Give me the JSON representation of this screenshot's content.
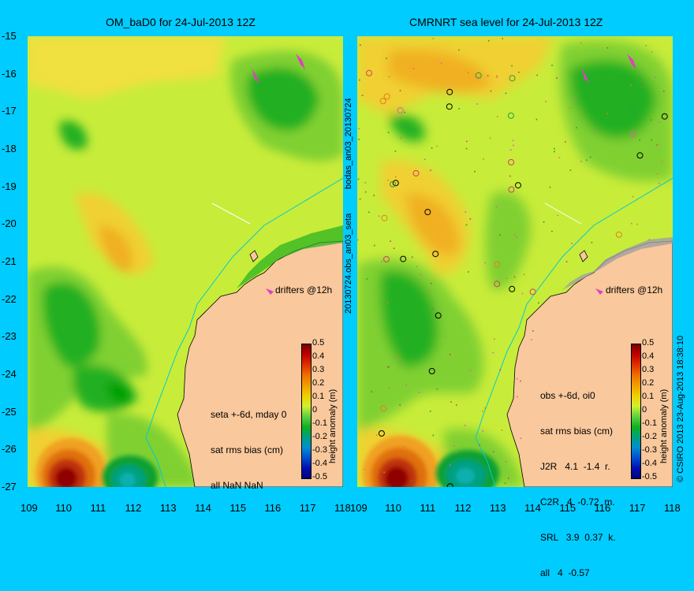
{
  "left": {
    "title": "OM_baD0 for 24-Jul-2013 12Z",
    "info": [
      "seta +-6d, mday 0",
      "sat rms bias (cm)",
      "all NaN NaN"
    ],
    "drifters": "drifters @12h",
    "colorbar_label": "height anomaly (m)"
  },
  "right": {
    "title": "CMRNRT sea level  for 24-Jul-2013 12Z",
    "info": [
      "obs +-6d, oi0",
      "sat rms bias (cm)",
      "J2R   4.1  -1.4  r.",
      "C2R   4  -0.72  m.",
      "SRL   3.9  0.37  k.",
      "all   4  -0.57"
    ],
    "drifters": "drifters @12h",
    "colorbar_label": "height anomaly (m)"
  },
  "middle_label_top": "bodas_an03_20130724",
  "middle_label_bottom": "20130724.obs_an03_seta",
  "credit": "© CSIRO 2013   23-Aug-2013 18:38:10",
  "lat_ticks": [
    "-15",
    "-16",
    "-17",
    "-18",
    "-19",
    "-20",
    "-21",
    "-22",
    "-23",
    "-24",
    "-25",
    "-26",
    "-27"
  ],
  "lon_ticks_left": [
    "109",
    "110",
    "111",
    "112",
    "113",
    "114",
    "115",
    "116",
    "117",
    "118"
  ],
  "lon_ticks_right": [
    "109",
    "110",
    "111",
    "112",
    "113",
    "114",
    "115",
    "116",
    "117",
    "118"
  ],
  "colorbar_ticks": [
    "0.5",
    "0.4",
    "0.3",
    "0.2",
    "0.1",
    "0",
    "-0.1",
    "-0.2",
    "-0.3",
    "-0.4",
    "-0.5"
  ],
  "colors": {
    "background": "#00ccff",
    "land": "#f9c89c",
    "sea_base": "#c8ec3a",
    "low": "#00a020",
    "high": "#f0b000"
  }
}
